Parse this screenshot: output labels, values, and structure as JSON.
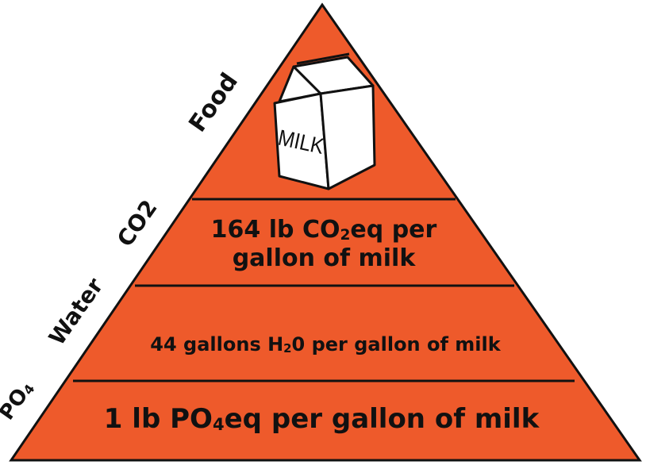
{
  "colors": {
    "pyramid_fill": "#ee5a2b",
    "outline": "#111111",
    "text": "#111111",
    "carton_fill": "#ffffff"
  },
  "side_labels": {
    "food": "Food",
    "co2": "CO2",
    "water": "Water",
    "po4_main": "PO",
    "po4_sub": "4"
  },
  "tiers": {
    "co2": {
      "line1_pre": "164 lb CO",
      "line1_sub": "2",
      "line1_post": "eq per",
      "line2": "gallon of milk"
    },
    "water": {
      "pre": "44 gallons H",
      "sub": "2",
      "post": "0 per gallon of milk"
    },
    "po4": {
      "pre": "1 lb PO",
      "sub": "4",
      "post": "eq per gallon of milk"
    }
  },
  "carton": {
    "label": "MILK",
    "icon": "milk-carton-icon"
  }
}
